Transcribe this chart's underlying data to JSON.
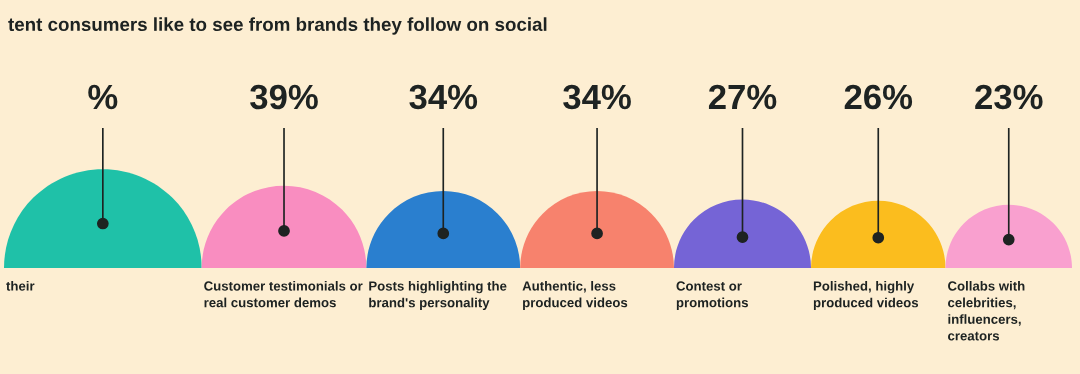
{
  "chart_data": {
    "type": "other",
    "title": "tent consumers like to see from brands they follow on social",
    "categories": [
      "their",
      "Customer testimonials or\nreal customer demos",
      "Posts highlighting the\nbrand's personality",
      "Authentic, less\nproduced videos",
      "Contest or\npromotions",
      "Polished, highly\nproduced videos",
      "Collabs with\ncelebrities,\ninfluencers,\ncreators"
    ],
    "values": [
      null,
      39,
      34,
      34,
      27,
      26,
      23
    ],
    "value_labels": [
      "%",
      "39%",
      "34%",
      "34%",
      "27%",
      "26%",
      "23%"
    ],
    "colors": [
      "#1fc1a8",
      "#f98dc0",
      "#2a7fcf",
      "#f7826d",
      "#7564d6",
      "#fbbd1e",
      "#f9a0cf"
    ]
  }
}
